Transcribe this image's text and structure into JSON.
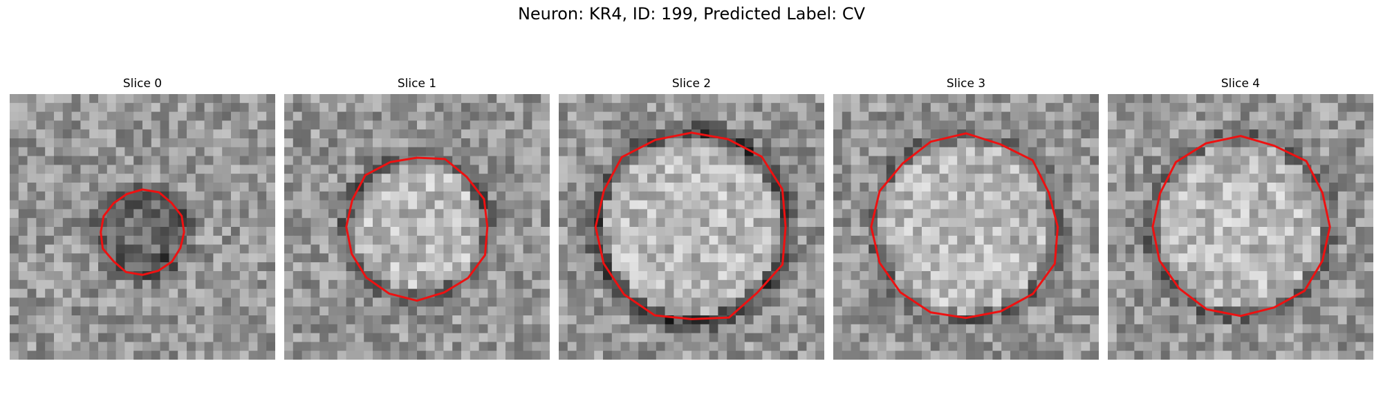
{
  "figure": {
    "title": "Neuron: KR4, ID: 199, Predicted Label: CV",
    "contour_color": "#ee1111"
  },
  "slices": [
    {
      "title": "Slice 0",
      "seed": 11,
      "radius": 0.16,
      "rim": 0.22,
      "dark_center": true
    },
    {
      "title": "Slice 1",
      "seed": 23,
      "radius": 0.27,
      "rim": 0.18,
      "dark_center": false
    },
    {
      "title": "Slice 2",
      "seed": 37,
      "radius": 0.36,
      "rim": 0.26,
      "dark_center": false
    },
    {
      "title": "Slice 3",
      "seed": 51,
      "radius": 0.35,
      "rim": 0.14,
      "dark_center": false
    },
    {
      "title": "Slice 4",
      "seed": 67,
      "radius": 0.34,
      "rim": 0.16,
      "dark_center": false
    }
  ]
}
